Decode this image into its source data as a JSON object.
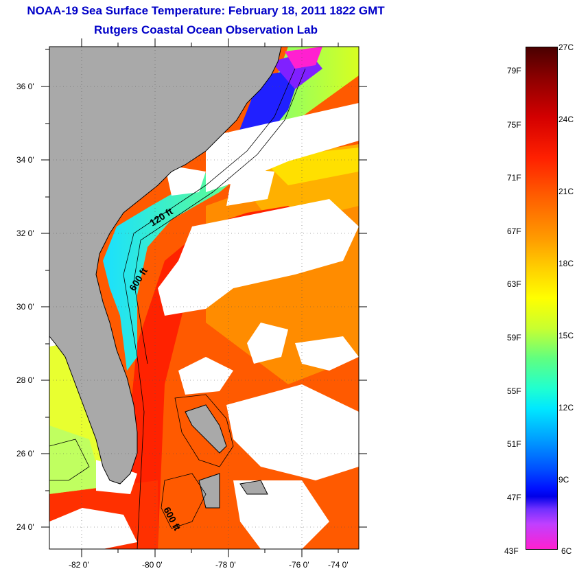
{
  "header": {
    "title": "NOAA-19 Sea Surface Temperature:  February 18, 2011 1822 GMT",
    "subtitle": "Rutgers Coastal Ocean Observation Lab"
  },
  "map": {
    "lat_labels": [
      "36 0'",
      "34 0'",
      "32 0'",
      "30 0'",
      "28 0'",
      "26 0'",
      "24 0'"
    ],
    "lon_labels": [
      "-82 0'",
      "-80 0'",
      "-78 0'",
      "-76 0'",
      "-74 0'"
    ],
    "contour_labels": [
      "120 ft",
      "600 ft",
      "600 ft"
    ],
    "colors": {
      "land": "#a9a9a9",
      "cloud": "#ffffff",
      "coast": "#000000"
    }
  },
  "colorbar": {
    "fahrenheit": [
      "79F",
      "75F",
      "71F",
      "67F",
      "63F",
      "59F",
      "55F",
      "51F",
      "47F",
      "43F"
    ],
    "celsius": [
      "27C",
      "24C",
      "21C",
      "18C",
      "15C",
      "12C",
      "9C",
      "6C"
    ]
  }
}
